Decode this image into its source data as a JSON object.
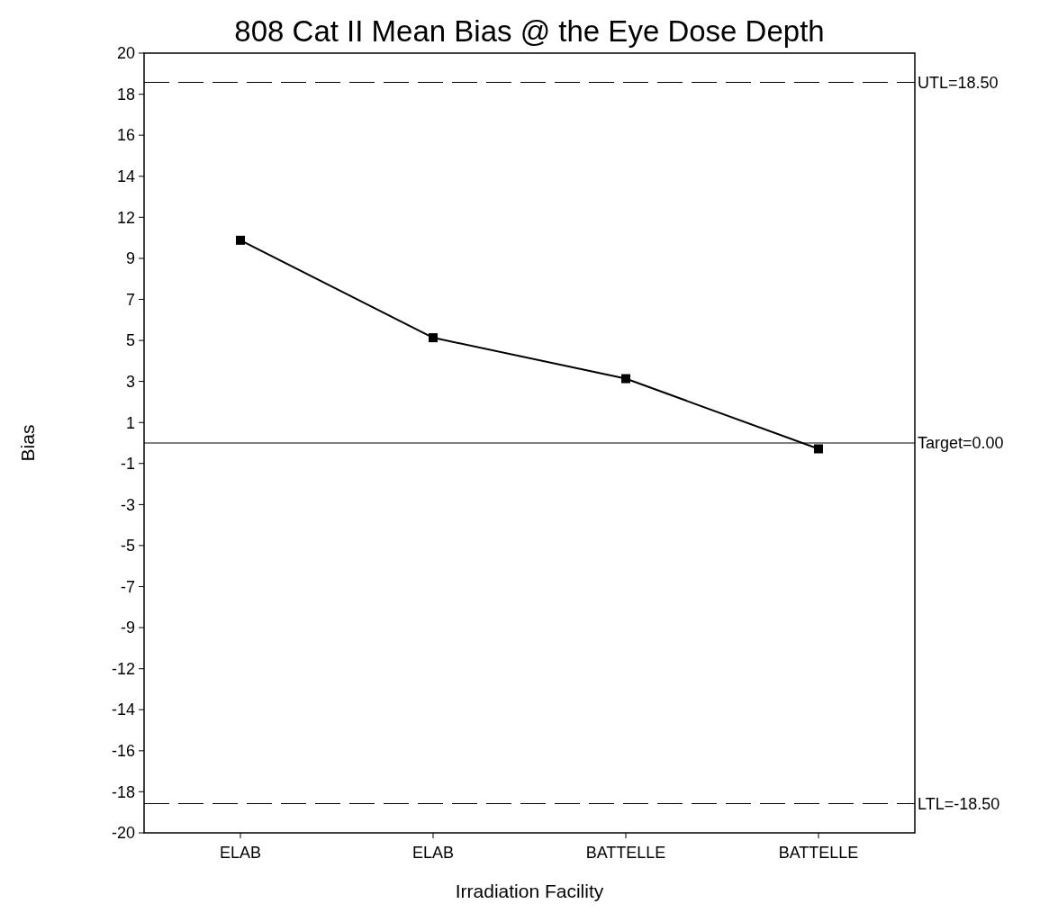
{
  "chart_data": {
    "type": "line",
    "title": "808 Cat II Mean Bias @ the Eye Dose Depth",
    "xlabel": "Irradiation Facility",
    "ylabel": "Bias",
    "categories": [
      "ELAB",
      "ELAB",
      "BATTELLE",
      "BATTELLE"
    ],
    "series": [
      {
        "color": "#000000",
        "values": [
          10.4,
          5.4,
          3.3,
          -0.3
        ]
      }
    ],
    "ylim": [
      -20,
      20
    ],
    "yticks": [
      {
        "value": 20,
        "label": "20"
      },
      {
        "value": 17.89,
        "label": "18"
      },
      {
        "value": 15.79,
        "label": "16"
      },
      {
        "value": 13.68,
        "label": "14"
      },
      {
        "value": 11.58,
        "label": "12"
      },
      {
        "value": 9.47,
        "label": "9"
      },
      {
        "value": 7.37,
        "label": "7"
      },
      {
        "value": 5.26,
        "label": "5"
      },
      {
        "value": 3.16,
        "label": "3"
      },
      {
        "value": 1.05,
        "label": "1"
      },
      {
        "value": -1.05,
        "label": "-1"
      },
      {
        "value": -3.16,
        "label": "-3"
      },
      {
        "value": -5.26,
        "label": "-5"
      },
      {
        "value": -7.37,
        "label": "-7"
      },
      {
        "value": -9.47,
        "label": "-9"
      },
      {
        "value": -11.58,
        "label": "-12"
      },
      {
        "value": -13.68,
        "label": "-14"
      },
      {
        "value": -15.79,
        "label": "-16"
      },
      {
        "value": -17.89,
        "label": "-18"
      },
      {
        "value": -20,
        "label": "-20"
      }
    ],
    "ref_lines": [
      {
        "axis": "y",
        "value": 18.5,
        "label": "UTL=18.50",
        "line_style": "dashed",
        "color": "#000000"
      },
      {
        "axis": "y",
        "value": 0,
        "label": "Target=0.00",
        "line_style": "solid",
        "color": "#000000"
      },
      {
        "axis": "y",
        "value": -18.5,
        "label": "LTL=-18.50",
        "line_style": "dashed",
        "color": "#000000"
      }
    ],
    "marker": "square",
    "line_style": "solid"
  }
}
